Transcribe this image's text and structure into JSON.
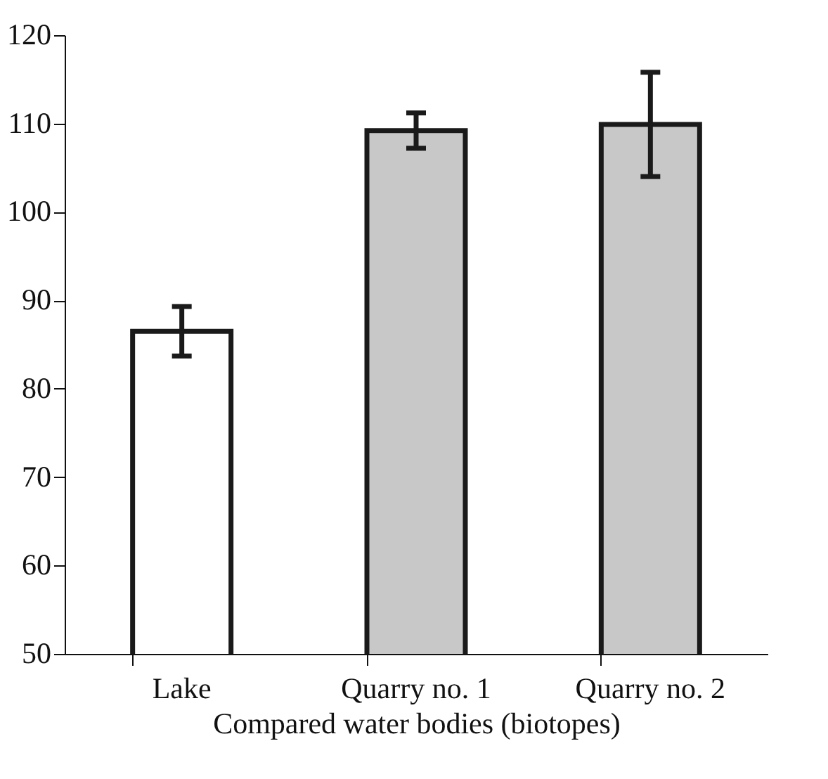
{
  "chart_data": {
    "type": "bar",
    "xlabel": "Compared water bodies (biotopes)",
    "categories": [
      "Lake",
      "Quarry no. 1",
      "Quarry no. 2"
    ],
    "values": [
      86.5,
      109.2,
      109.9
    ],
    "errors": [
      2.8,
      2.0,
      5.9
    ],
    "colors": [
      "#ffffff",
      "#c8c8c8",
      "#c8c8c8"
    ],
    "ylim": [
      50,
      120
    ],
    "yticks": [
      50,
      60,
      70,
      80,
      90,
      100,
      110,
      120
    ],
    "grid": false
  }
}
